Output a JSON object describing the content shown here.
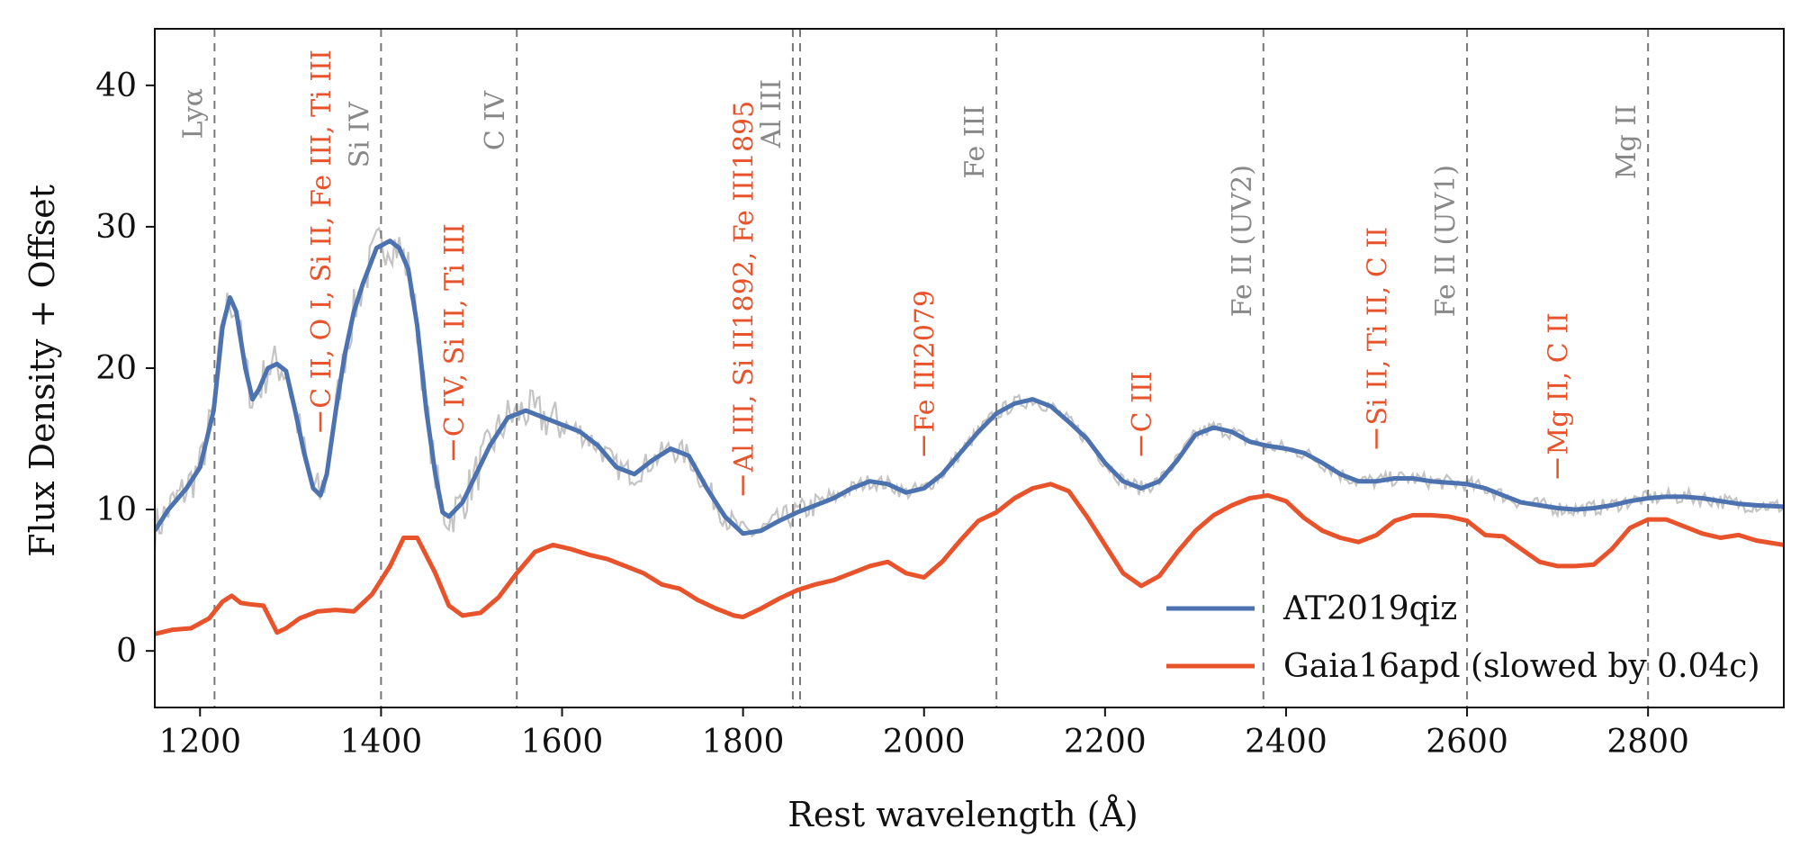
{
  "chart_data": {
    "type": "line",
    "title": "",
    "xlabel": "Rest wavelength (Å)",
    "ylabel": "Flux Density + Offset",
    "xlim": [
      1150,
      2950
    ],
    "ylim": [
      -4,
      44
    ],
    "x_ticks": [
      1200,
      1400,
      1600,
      1800,
      2000,
      2200,
      2400,
      2600,
      2800
    ],
    "y_ticks": [
      0,
      10,
      20,
      30,
      40
    ],
    "grid": false,
    "legend_position": "lower-right",
    "colors": {
      "blue": "#4c72b0",
      "orange": "#e8532b",
      "gray_label": "#888888",
      "raw": "#c4c4c4",
      "vline": "#777777"
    },
    "series": [
      {
        "name": "AT2019qiz",
        "color": "#4c72b0",
        "points": [
          [
            1150,
            8.5
          ],
          [
            1165,
            10
          ],
          [
            1185,
            11.5
          ],
          [
            1200,
            13
          ],
          [
            1215,
            17
          ],
          [
            1225,
            23
          ],
          [
            1233,
            25
          ],
          [
            1240,
            24
          ],
          [
            1250,
            20
          ],
          [
            1258,
            17.8
          ],
          [
            1265,
            18.5
          ],
          [
            1275,
            20
          ],
          [
            1285,
            20.3
          ],
          [
            1295,
            19.8
          ],
          [
            1305,
            17
          ],
          [
            1315,
            14
          ],
          [
            1325,
            11.5
          ],
          [
            1333,
            11
          ],
          [
            1340,
            12.5
          ],
          [
            1350,
            17
          ],
          [
            1360,
            21
          ],
          [
            1370,
            24
          ],
          [
            1380,
            26
          ],
          [
            1395,
            28.5
          ],
          [
            1410,
            29
          ],
          [
            1420,
            28.5
          ],
          [
            1430,
            27
          ],
          [
            1440,
            23
          ],
          [
            1450,
            17
          ],
          [
            1460,
            12.5
          ],
          [
            1468,
            9.8
          ],
          [
            1475,
            9.5
          ],
          [
            1490,
            10.5
          ],
          [
            1505,
            12.5
          ],
          [
            1520,
            14.5
          ],
          [
            1540,
            16.5
          ],
          [
            1560,
            17
          ],
          [
            1580,
            16.5
          ],
          [
            1600,
            16
          ],
          [
            1620,
            15.5
          ],
          [
            1640,
            14.5
          ],
          [
            1660,
            13
          ],
          [
            1680,
            12.5
          ],
          [
            1700,
            13.5
          ],
          [
            1720,
            14.3
          ],
          [
            1740,
            13.8
          ],
          [
            1760,
            11.5
          ],
          [
            1780,
            9.5
          ],
          [
            1800,
            8.3
          ],
          [
            1820,
            8.5
          ],
          [
            1840,
            9.2
          ],
          [
            1860,
            9.8
          ],
          [
            1880,
            10.3
          ],
          [
            1900,
            10.8
          ],
          [
            1920,
            11.5
          ],
          [
            1940,
            12
          ],
          [
            1960,
            11.8
          ],
          [
            1980,
            11.2
          ],
          [
            2000,
            11.5
          ],
          [
            2020,
            12.5
          ],
          [
            2040,
            14
          ],
          [
            2060,
            15.5
          ],
          [
            2080,
            16.8
          ],
          [
            2100,
            17.5
          ],
          [
            2120,
            17.8
          ],
          [
            2140,
            17.3
          ],
          [
            2160,
            16.2
          ],
          [
            2180,
            15
          ],
          [
            2200,
            13.3
          ],
          [
            2220,
            12
          ],
          [
            2240,
            11.5
          ],
          [
            2260,
            12
          ],
          [
            2280,
            13.5
          ],
          [
            2300,
            15.3
          ],
          [
            2320,
            15.8
          ],
          [
            2340,
            15.5
          ],
          [
            2360,
            14.8
          ],
          [
            2380,
            14.5
          ],
          [
            2400,
            14.3
          ],
          [
            2420,
            14
          ],
          [
            2440,
            13.3
          ],
          [
            2460,
            12.5
          ],
          [
            2480,
            12
          ],
          [
            2500,
            12
          ],
          [
            2520,
            12.2
          ],
          [
            2540,
            12.2
          ],
          [
            2560,
            12
          ],
          [
            2580,
            11.9
          ],
          [
            2600,
            11.8
          ],
          [
            2620,
            11.5
          ],
          [
            2640,
            11
          ],
          [
            2660,
            10.5
          ],
          [
            2680,
            10.3
          ],
          [
            2700,
            10.1
          ],
          [
            2720,
            10
          ],
          [
            2740,
            10.1
          ],
          [
            2760,
            10.3
          ],
          [
            2780,
            10.6
          ],
          [
            2800,
            10.8
          ],
          [
            2820,
            10.9
          ],
          [
            2840,
            10.9
          ],
          [
            2860,
            10.8
          ],
          [
            2880,
            10.6
          ],
          [
            2900,
            10.4
          ],
          [
            2920,
            10.3
          ],
          [
            2950,
            10.2
          ]
        ]
      },
      {
        "name": "Gaia16apd (slowed by 0.04c)",
        "color": "#e8532b",
        "points": [
          [
            1150,
            1.2
          ],
          [
            1170,
            1.5
          ],
          [
            1190,
            1.6
          ],
          [
            1210,
            2.3
          ],
          [
            1225,
            3.5
          ],
          [
            1235,
            3.9
          ],
          [
            1245,
            3.4
          ],
          [
            1255,
            3.3
          ],
          [
            1270,
            3.2
          ],
          [
            1285,
            1.3
          ],
          [
            1295,
            1.6
          ],
          [
            1310,
            2.3
          ],
          [
            1330,
            2.8
          ],
          [
            1350,
            2.9
          ],
          [
            1370,
            2.8
          ],
          [
            1390,
            4
          ],
          [
            1410,
            6
          ],
          [
            1425,
            8
          ],
          [
            1440,
            8
          ],
          [
            1460,
            5.5
          ],
          [
            1475,
            3.2
          ],
          [
            1490,
            2.5
          ],
          [
            1510,
            2.7
          ],
          [
            1530,
            3.8
          ],
          [
            1550,
            5.5
          ],
          [
            1570,
            7
          ],
          [
            1590,
            7.5
          ],
          [
            1610,
            7.2
          ],
          [
            1630,
            6.8
          ],
          [
            1650,
            6.5
          ],
          [
            1670,
            6
          ],
          [
            1690,
            5.5
          ],
          [
            1710,
            4.7
          ],
          [
            1730,
            4.4
          ],
          [
            1750,
            3.6
          ],
          [
            1770,
            3
          ],
          [
            1790,
            2.5
          ],
          [
            1800,
            2.4
          ],
          [
            1820,
            3
          ],
          [
            1840,
            3.7
          ],
          [
            1860,
            4.3
          ],
          [
            1880,
            4.7
          ],
          [
            1900,
            5
          ],
          [
            1920,
            5.5
          ],
          [
            1940,
            6
          ],
          [
            1960,
            6.3
          ],
          [
            1980,
            5.5
          ],
          [
            2000,
            5.2
          ],
          [
            2020,
            6.3
          ],
          [
            2040,
            7.8
          ],
          [
            2060,
            9.2
          ],
          [
            2080,
            9.8
          ],
          [
            2100,
            10.8
          ],
          [
            2120,
            11.5
          ],
          [
            2140,
            11.8
          ],
          [
            2160,
            11.3
          ],
          [
            2180,
            9.5
          ],
          [
            2200,
            7.5
          ],
          [
            2220,
            5.5
          ],
          [
            2240,
            4.6
          ],
          [
            2260,
            5.3
          ],
          [
            2280,
            7
          ],
          [
            2300,
            8.5
          ],
          [
            2320,
            9.6
          ],
          [
            2340,
            10.3
          ],
          [
            2360,
            10.8
          ],
          [
            2380,
            11
          ],
          [
            2400,
            10.6
          ],
          [
            2420,
            9.4
          ],
          [
            2440,
            8.5
          ],
          [
            2460,
            8
          ],
          [
            2480,
            7.7
          ],
          [
            2500,
            8.2
          ],
          [
            2520,
            9.2
          ],
          [
            2540,
            9.6
          ],
          [
            2560,
            9.6
          ],
          [
            2580,
            9.5
          ],
          [
            2600,
            9.2
          ],
          [
            2620,
            8.2
          ],
          [
            2640,
            8.1
          ],
          [
            2660,
            7.2
          ],
          [
            2680,
            6.3
          ],
          [
            2700,
            6
          ],
          [
            2720,
            6
          ],
          [
            2740,
            6.1
          ],
          [
            2760,
            7.2
          ],
          [
            2780,
            8.7
          ],
          [
            2800,
            9.3
          ],
          [
            2820,
            9.3
          ],
          [
            2840,
            8.8
          ],
          [
            2860,
            8.3
          ],
          [
            2880,
            8
          ],
          [
            2900,
            8.2
          ],
          [
            2920,
            7.8
          ],
          [
            2950,
            7.5
          ]
        ]
      }
    ],
    "reference_lines": [
      {
        "x": 1216,
        "label": "Lyα",
        "y": 38
      },
      {
        "x": 1400,
        "label": "Si IV",
        "y": 36.5
      },
      {
        "x": 1550,
        "label": "C IV",
        "y": 37.5
      },
      {
        "x": 1855,
        "label": "Al III",
        "y": 38
      },
      {
        "x": 1863,
        "label": "",
        "y": 38
      },
      {
        "x": 2080,
        "label": "Fe III",
        "y": 36
      },
      {
        "x": 2375,
        "label": "Fe II (UV2)",
        "y": 29
      },
      {
        "x": 2600,
        "label": "Fe II (UV1)",
        "y": 29
      },
      {
        "x": 2800,
        "label": "Mg II",
        "y": 36
      }
    ],
    "annotations": [
      {
        "x": 1333,
        "y": 15.5,
        "text": "C II, O I, Si II, Fe III, Ti III"
      },
      {
        "x": 1480,
        "y": 13.5,
        "text": "C IV, Si II, Ti III"
      },
      {
        "x": 1800,
        "y": 11,
        "text": "Al III, Si II1892, Fe III1895"
      },
      {
        "x": 2000,
        "y": 13.8,
        "text": "Fe III2079"
      },
      {
        "x": 2240,
        "y": 13.8,
        "text": "C III"
      },
      {
        "x": 2500,
        "y": 14.3,
        "text": "Si II, Ti II, C II"
      },
      {
        "x": 2700,
        "y": 12.2,
        "text": "Mg II, C II"
      }
    ],
    "raw_spectrum": "noisy gray observed spectrum underlying the AT2019qiz model"
  }
}
